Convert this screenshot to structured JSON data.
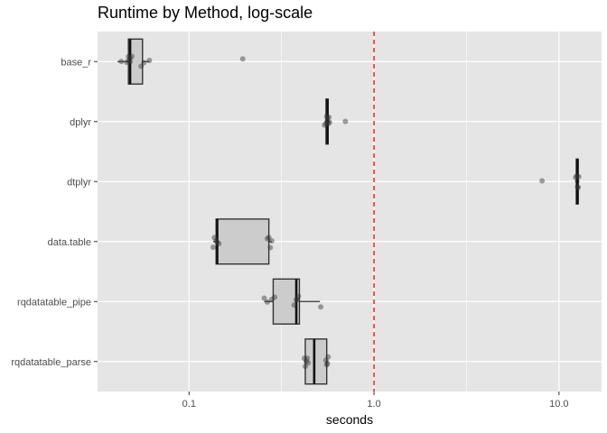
{
  "chart_data": {
    "type": "boxplot",
    "title": "Runtime by Method, log-scale",
    "xlabel": "seconds",
    "ylabel": "",
    "x_scale": "log10",
    "xlim": [
      0.032,
      17
    ],
    "x_ticks": [
      {
        "value": 0.1,
        "label": "0.1"
      },
      {
        "value": 1,
        "label": "1.0"
      },
      {
        "value": 10,
        "label": "10.0"
      }
    ],
    "reference_line": {
      "x": 1,
      "color": "#ff0000",
      "style": "dashed"
    },
    "grid": true,
    "colors": {
      "panel": "#e5e5e5",
      "grid": "#ffffff",
      "box_fill": "#cccccc",
      "box_stroke": "#333333",
      "point": "#333333"
    },
    "categories": [
      "base_r",
      "dplyr",
      "dtplyr",
      "data.table",
      "rqdatatable_pipe",
      "rqdatatable_parse"
    ],
    "boxes": [
      {
        "category": "base_r",
        "whisker_low": 0.041,
        "q1": 0.047,
        "median": 0.048,
        "q3": 0.056,
        "whisker_high": 0.061,
        "points": [
          0.043,
          0.046,
          0.047,
          0.048,
          0.047,
          0.048,
          0.049,
          0.055,
          0.057,
          0.061,
          0.195
        ]
      },
      {
        "category": "dplyr",
        "whisker_low": 0.54,
        "q1": 0.55,
        "median": 0.56,
        "q3": 0.565,
        "whisker_high": 0.58,
        "points": [
          0.54,
          0.55,
          0.555,
          0.56,
          0.56,
          0.565,
          0.57,
          0.575,
          0.7
        ]
      },
      {
        "category": "dtplyr",
        "whisker_low": 12.2,
        "q1": 12.4,
        "median": 12.6,
        "q3": 12.7,
        "whisker_high": 12.9,
        "points": [
          12.3,
          12.5,
          12.6,
          12.7,
          12.8,
          8.1
        ]
      },
      {
        "category": "data.table",
        "whisker_low": 0.135,
        "q1": 0.14,
        "median": 0.142,
        "q3": 0.27,
        "whisker_high": 0.28,
        "points": [
          0.135,
          0.137,
          0.14,
          0.142,
          0.145,
          0.265,
          0.27,
          0.275,
          0.28
        ]
      },
      {
        "category": "rqdatatable_pipe",
        "whisker_low": 0.255,
        "q1": 0.285,
        "median": 0.38,
        "q3": 0.395,
        "whisker_high": 0.51,
        "points": [
          0.255,
          0.265,
          0.28,
          0.29,
          0.37,
          0.38,
          0.385,
          0.39,
          0.515
        ]
      },
      {
        "category": "rqdatatable_parse",
        "whisker_low": 0.42,
        "q1": 0.425,
        "median": 0.475,
        "q3": 0.555,
        "whisker_high": 0.565,
        "points": [
          0.42,
          0.425,
          0.43,
          0.435,
          0.44,
          0.55,
          0.555,
          0.56,
          0.565
        ]
      }
    ]
  }
}
